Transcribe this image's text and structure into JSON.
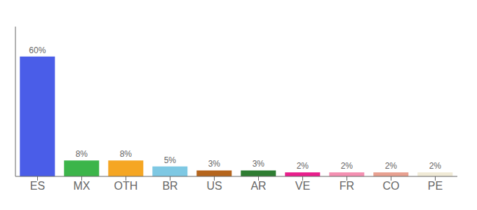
{
  "chart_data": {
    "type": "bar",
    "categories": [
      "ES",
      "MX",
      "OTH",
      "BR",
      "US",
      "AR",
      "VE",
      "FR",
      "CO",
      "PE"
    ],
    "values": [
      60,
      8,
      8,
      5,
      3,
      3,
      2,
      2,
      2,
      2
    ],
    "value_labels": [
      "60%",
      "8%",
      "8%",
      "5%",
      "3%",
      "3%",
      "2%",
      "2%",
      "2%",
      "2%"
    ],
    "colors": [
      "#4a5de8",
      "#3cb54a",
      "#f5a623",
      "#7ec8e3",
      "#b5651d",
      "#2e7d32",
      "#e91e8c",
      "#f48fb1",
      "#e8a090",
      "#f0ead6"
    ],
    "ylim": [
      0,
      75
    ],
    "data_labels": true,
    "tick_labels": "x",
    "grid": false
  }
}
